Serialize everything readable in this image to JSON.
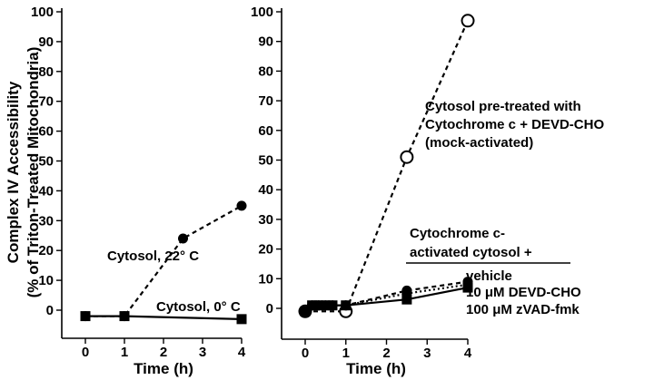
{
  "chart_data": [
    {
      "type": "line",
      "panel": "left",
      "ylabel_line1": "Complex IV Accessibility",
      "ylabel_line2": "(% of Triton-Treated Mitochondria)",
      "xlabel": "Time (h)",
      "xlim": [
        0,
        4
      ],
      "ylim": [
        0,
        100
      ],
      "x_ticks": [
        "0",
        "1",
        "2",
        "3",
        "4"
      ],
      "y_ticks": [
        "0",
        "10",
        "20",
        "30",
        "40",
        "50",
        "60",
        "70",
        "80",
        "90",
        "100"
      ],
      "grid": false,
      "series": [
        {
          "name": "Cytosol, 22° C",
          "marker": "filled-circle",
          "line": "dashed",
          "x": [
            0,
            1,
            2.5,
            4
          ],
          "y": [
            -2,
            -2,
            24,
            35
          ]
        },
        {
          "name": "Cytosol, 0° C",
          "marker": "filled-square",
          "line": "solid",
          "x": [
            0,
            1,
            4
          ],
          "y": [
            -2,
            -2,
            -3
          ]
        }
      ]
    },
    {
      "type": "line",
      "panel": "right",
      "xlabel": "Time (h)",
      "xlim": [
        0,
        4
      ],
      "ylim": [
        0,
        100
      ],
      "x_ticks": [
        "0",
        "1",
        "2",
        "3",
        "4"
      ],
      "y_ticks": [
        "0",
        "10",
        "20",
        "30",
        "40",
        "50",
        "60",
        "70",
        "80",
        "90",
        "100"
      ],
      "grid": false,
      "annotations": {
        "mock_line1": "Cytosol pre-treated with",
        "mock_line2": "Cytochrome c + DEVD-CHO",
        "mock_line3": "(mock-activated)",
        "group_line1": "Cytochrome c-",
        "group_line2": "activated cytosol +"
      },
      "series": [
        {
          "name": "mock-activated",
          "marker": "open-circle",
          "line": "dashed",
          "x": [
            0,
            1,
            2.5,
            4
          ],
          "y": [
            -1,
            -1,
            51,
            97
          ]
        },
        {
          "name": "vehicle",
          "marker": "filled-circle",
          "line": "dashed",
          "x": [
            0,
            0.17,
            0.33,
            0.5,
            0.67,
            1,
            2.5,
            4
          ],
          "y": [
            -1,
            1,
            1,
            1,
            1,
            1,
            6,
            9
          ]
        },
        {
          "name": "10 μM DEVD-CHO",
          "marker": "filled-circle",
          "line": "dotted",
          "x": [
            0,
            0.17,
            0.33,
            0.5,
            0.67,
            1,
            2.5,
            4
          ],
          "y": [
            -1,
            1,
            1,
            1,
            1,
            1,
            5,
            8
          ]
        },
        {
          "name": "100 μM zVAD-fmk",
          "marker": "filled-square",
          "line": "solid",
          "x": [
            0,
            0.17,
            0.33,
            0.5,
            0.67,
            1,
            2.5,
            4
          ],
          "y": [
            -1,
            1,
            1,
            1,
            1,
            1,
            3,
            7
          ]
        }
      ]
    }
  ]
}
